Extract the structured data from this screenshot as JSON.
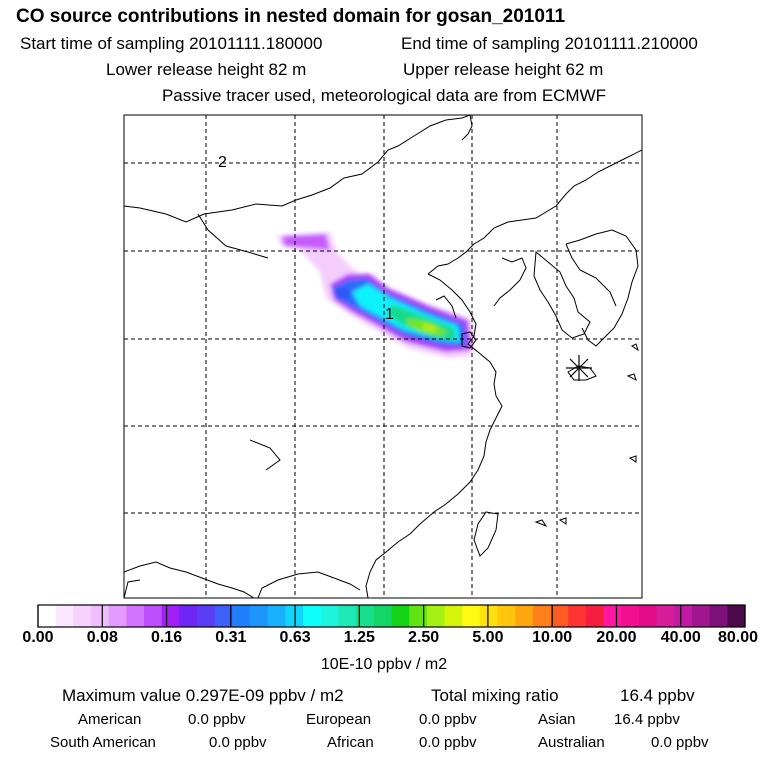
{
  "header": {
    "title": "CO  source contributions in nested domain for gosan_201011",
    "start_label": "Start time of sampling 20101111.180000",
    "end_label": "End time of sampling 20101111.210000",
    "lower_release": "Lower release height   82 m",
    "upper_release": "Upper release height   62 m",
    "tracer_note": "Passive tracer used, meteorological data are from ECMWF"
  },
  "map": {
    "markers": [
      {
        "label": "2"
      },
      {
        "label": "1"
      }
    ],
    "receptor_icon": "asterisk-receptor-icon"
  },
  "colorbar": {
    "ticks": [
      "0.00",
      "0.08",
      "0.16",
      "0.31",
      "0.63",
      "1.25",
      "2.50",
      "5.00",
      "10.00",
      "20.00",
      "40.00",
      "80.00"
    ],
    "unit_label": "10E-10 ppbv / m2",
    "colors": [
      "#ffffff",
      "#fbe6ff",
      "#f6d2fe",
      "#efbdfd",
      "#e39cfd",
      "#d173fc",
      "#bd4efb",
      "#a31ff8",
      "#6e26f5",
      "#5a3ff6",
      "#3f5ffa",
      "#1f80fb",
      "#1c96fb",
      "#19b1fb",
      "#10d5fb",
      "#0ffffd",
      "#1cf5dc",
      "#1ee8b6",
      "#17df8c",
      "#13d668",
      "#14d418",
      "#62e414",
      "#a5f114",
      "#d4f50a",
      "#fffa14",
      "#ffe20c",
      "#ffc50a",
      "#ffa60f",
      "#ff7f1c",
      "#ff5b25",
      "#ff3331",
      "#f71d3f",
      "#ff17a2",
      "#f20f90",
      "#e30d8c",
      "#d61e9b",
      "#c21aa5",
      "#a2168f",
      "#7e107a",
      "#4c0a4b"
    ]
  },
  "summary": {
    "max_label": "Maximum value  0.297E-09 ppbv / m2",
    "total_label": "Total mixing ratio",
    "total_value": "16.4 ppbv",
    "regions": [
      {
        "name": "American",
        "value": "0.0 ppbv"
      },
      {
        "name": "European",
        "value": "0.0 ppbv"
      },
      {
        "name": "Asian",
        "value": "16.4 ppbv"
      },
      {
        "name": "South American",
        "value": "0.0 ppbv"
      },
      {
        "name": "African",
        "value": "0.0 ppbv"
      },
      {
        "name": "Australian",
        "value": "0.0 ppbv"
      }
    ]
  }
}
